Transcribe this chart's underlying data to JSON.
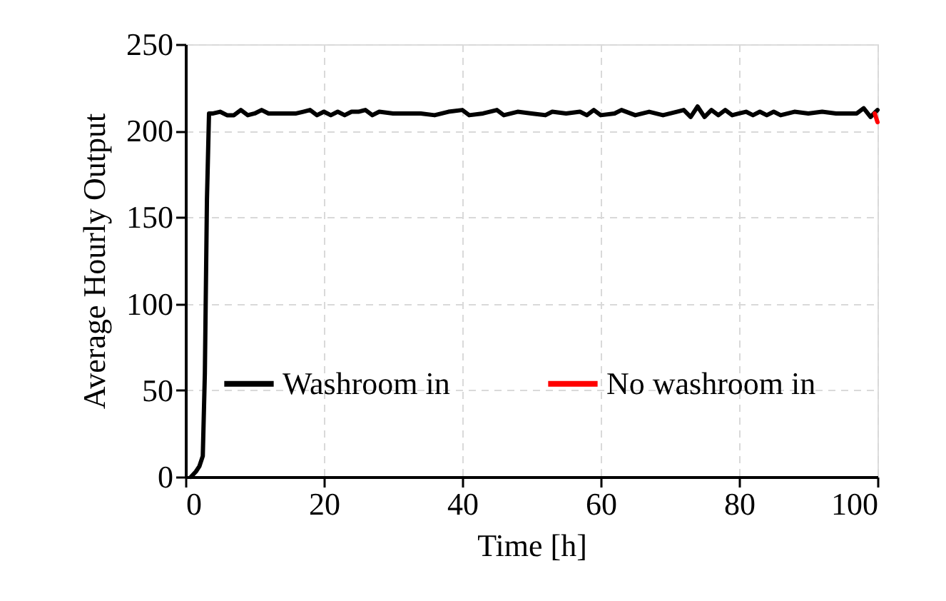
{
  "chart_data": {
    "type": "line",
    "xlabel": "Time [h]",
    "ylabel": "Average Hourly Output",
    "xlim": [
      0,
      100
    ],
    "xticks": [
      0,
      20,
      40,
      60,
      80,
      100
    ],
    "ylim": [
      0,
      250
    ],
    "yticks": [
      0,
      50,
      100,
      150,
      200,
      250
    ],
    "grid": true,
    "legend": "left",
    "series": [
      {
        "name": "Washroom in",
        "color": "#000000",
        "x": [
          0.8,
          1.5,
          2,
          2.5,
          2.8,
          3.1,
          3.4,
          4,
          5,
          6,
          7,
          8,
          9,
          10,
          11,
          12,
          14,
          16,
          17,
          18,
          19,
          20,
          21,
          22,
          23,
          24,
          25,
          26,
          27,
          28,
          30,
          32,
          34,
          36,
          38,
          40,
          41,
          43,
          45,
          46,
          48,
          50,
          52,
          53,
          55,
          57,
          58,
          59,
          60,
          62,
          63,
          65,
          67,
          69,
          71,
          72,
          73,
          74,
          75,
          76,
          77,
          78,
          79,
          80,
          81,
          82,
          83,
          84,
          85,
          86,
          88,
          90,
          92,
          94,
          96,
          97,
          98,
          99,
          99.5,
          100
        ],
        "values": [
          0,
          3,
          6,
          12,
          60,
          160,
          210,
          210,
          211,
          209,
          209,
          212,
          209,
          210,
          212,
          210,
          210,
          210,
          211,
          212,
          209,
          211,
          209,
          211,
          209,
          211,
          211,
          212,
          209,
          211,
          210,
          210,
          210,
          209,
          211,
          212,
          209,
          210,
          212,
          209,
          211,
          210,
          209,
          211,
          210,
          211,
          209,
          212,
          209,
          210,
          212,
          209,
          211,
          209,
          211,
          212,
          208,
          214,
          208,
          212,
          209,
          212,
          209,
          210,
          211,
          209,
          211,
          209,
          211,
          209,
          211,
          210,
          211,
          210,
          210,
          210,
          213,
          208,
          210,
          212
        ]
      },
      {
        "name": "No washroom in",
        "color": "#ff0000",
        "x": [
          99.6,
          100
        ],
        "values": [
          210,
          205
        ]
      }
    ]
  }
}
